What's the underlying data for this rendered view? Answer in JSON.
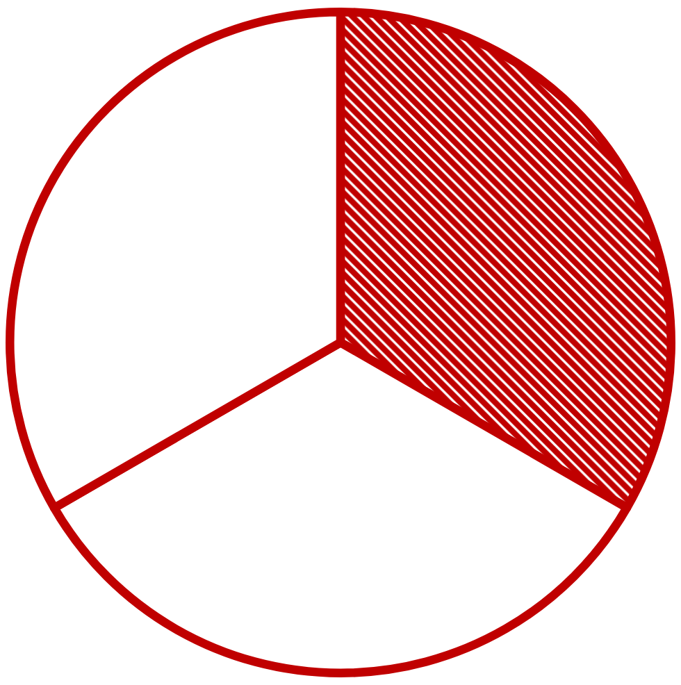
{
  "chart_data": {
    "type": "pie",
    "categories": [
      null,
      null,
      null
    ],
    "values": [
      33.33,
      33.33,
      33.34
    ],
    "colors": [
      "#c00000",
      "#ffffff",
      "#ffffff"
    ]
  }
}
